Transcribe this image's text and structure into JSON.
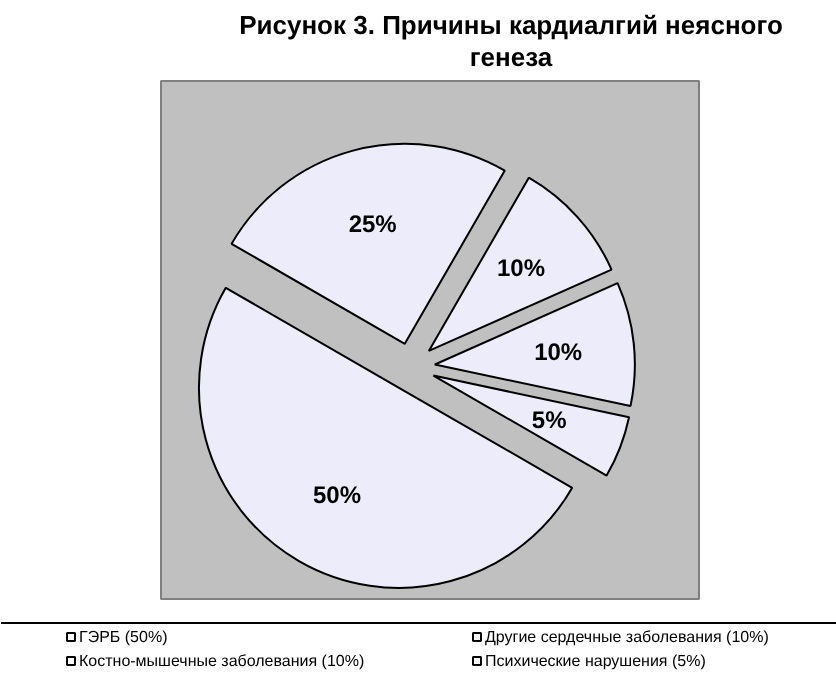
{
  "chart_data": {
    "type": "pie",
    "title": "Рисунок 3. Причины кардиалгий неясного генеза",
    "categories": [
      "ГЭРБ (50%)",
      null,
      "Другие сердечные заболевания (10%)",
      "Костно-мышечные заболевания (10%)",
      "Психические нарушения  (5%)"
    ],
    "values": [
      50,
      25,
      10,
      10,
      5
    ],
    "colors": [
      "#ececfa",
      "#ececfa",
      "#ececfa",
      "#ececfa",
      "#ececfa"
    ],
    "value_labels": [
      "50%",
      "25%",
      "10%",
      "10%",
      "5%"
    ],
    "legend": "bottom"
  }
}
